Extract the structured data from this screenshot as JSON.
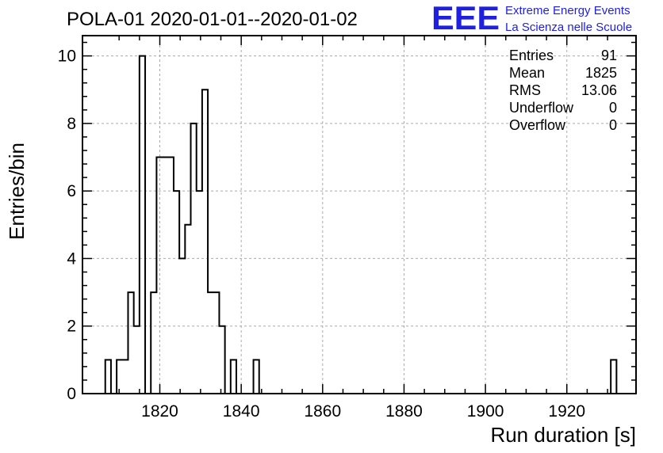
{
  "chart_data": {
    "type": "bar",
    "title": "POLA-01 2020-01-01--2020-01-02",
    "xlabel": "Run duration [s]",
    "ylabel": "Entries/bin",
    "xlim": [
      1801,
      1937
    ],
    "ylim": [
      0,
      10.6
    ],
    "bin_width": 1.4,
    "grid": true,
    "x_ticks": [
      1820,
      1840,
      1860,
      1880,
      1900,
      1920
    ],
    "y_ticks": [
      0,
      2,
      4,
      6,
      8,
      10
    ],
    "bins": [
      {
        "x": 1806.6,
        "value": 1
      },
      {
        "x": 1808.0,
        "value": 0
      },
      {
        "x": 1809.4,
        "value": 1
      },
      {
        "x": 1810.8,
        "value": 1
      },
      {
        "x": 1812.2,
        "value": 3
      },
      {
        "x": 1813.6,
        "value": 2
      },
      {
        "x": 1815.0,
        "value": 10
      },
      {
        "x": 1816.4,
        "value": 0
      },
      {
        "x": 1817.8,
        "value": 3
      },
      {
        "x": 1819.2,
        "value": 7
      },
      {
        "x": 1820.6,
        "value": 7
      },
      {
        "x": 1822.0,
        "value": 7
      },
      {
        "x": 1823.4,
        "value": 6
      },
      {
        "x": 1824.8,
        "value": 4
      },
      {
        "x": 1826.2,
        "value": 5
      },
      {
        "x": 1827.6,
        "value": 8
      },
      {
        "x": 1829.0,
        "value": 6
      },
      {
        "x": 1830.4,
        "value": 9
      },
      {
        "x": 1831.8,
        "value": 3
      },
      {
        "x": 1833.2,
        "value": 3
      },
      {
        "x": 1834.6,
        "value": 2
      },
      {
        "x": 1836.0,
        "value": 0
      },
      {
        "x": 1837.4,
        "value": 1
      },
      {
        "x": 1838.8,
        "value": 0
      },
      {
        "x": 1840.2,
        "value": 0
      },
      {
        "x": 1841.6,
        "value": 0
      },
      {
        "x": 1843.0,
        "value": 1
      },
      {
        "x": 1930.8,
        "value": 1
      }
    ]
  },
  "stats_box": {
    "rows": [
      {
        "label": "Entries",
        "value": "91"
      },
      {
        "label": "Mean",
        "value": "1825"
      },
      {
        "label": "RMS",
        "value": "13.06"
      },
      {
        "label": "Underflow",
        "value": "0"
      },
      {
        "label": "Overflow",
        "value": "0"
      }
    ]
  },
  "logo": {
    "mark": "EEE",
    "line1": "Extreme Energy Events",
    "line2": "La Scienza nelle Scuole",
    "color": "#1f1fe0"
  }
}
